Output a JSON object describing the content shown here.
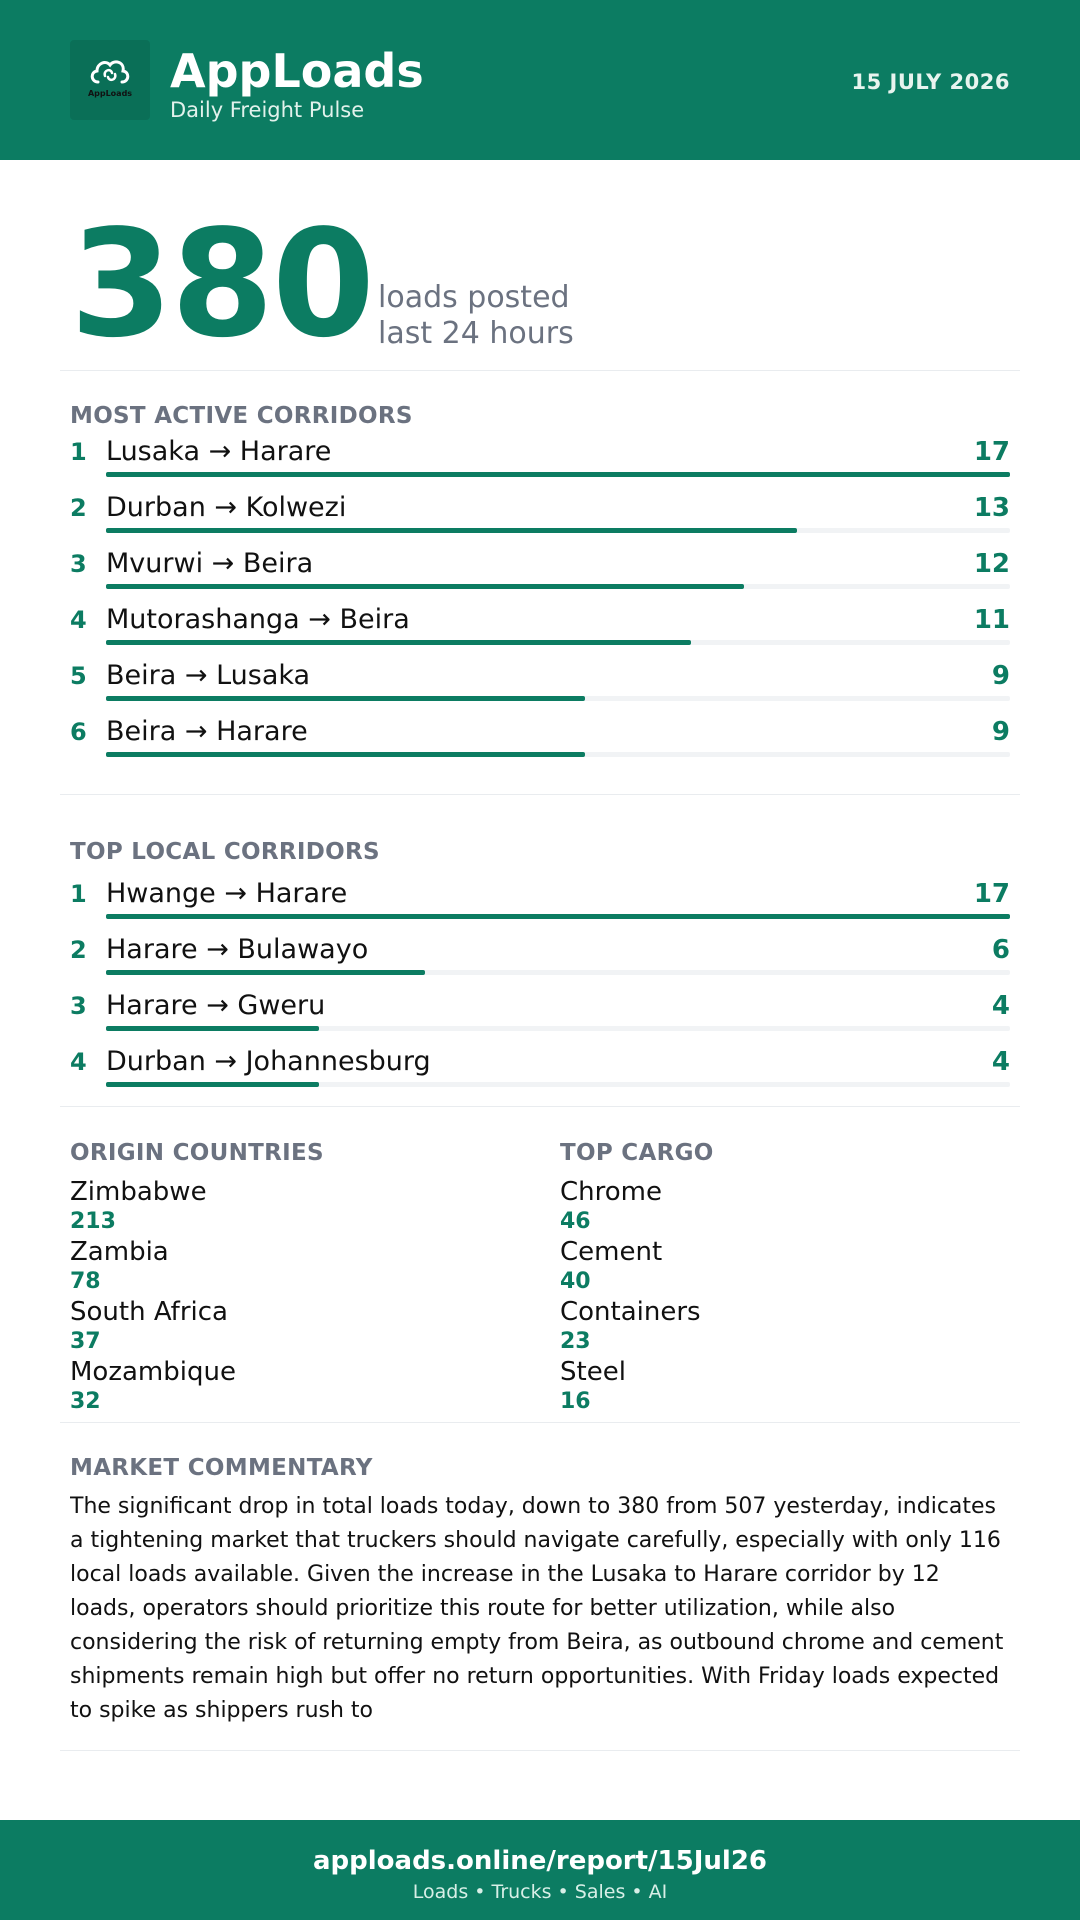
{
  "header": {
    "logo_icon": "cloud-link-icon",
    "logo_text": "AppLoads",
    "title": "AppLoads",
    "subtitle": "Daily Freight Pulse",
    "date": "15 JULY 2026"
  },
  "hero": {
    "value": "380",
    "label_line1": "loads posted",
    "label_line2": "last 24 hours"
  },
  "most_active": {
    "title": "MOST ACTIVE CORRIDORS",
    "max": 17,
    "items": [
      {
        "rank": "1",
        "route": "Lusaka → Harare",
        "count": 17
      },
      {
        "rank": "2",
        "route": "Durban → Kolwezi",
        "count": 13
      },
      {
        "rank": "3",
        "route": "Mvurwi → Beira",
        "count": 12
      },
      {
        "rank": "4",
        "route": "Mutorashanga → Beira",
        "count": 11
      },
      {
        "rank": "5",
        "route": "Beira → Lusaka",
        "count": 9
      },
      {
        "rank": "6",
        "route": "Beira → Harare",
        "count": 9
      }
    ]
  },
  "top_local": {
    "title": "TOP LOCAL CORRIDORS",
    "max": 17,
    "items": [
      {
        "rank": "1",
        "route": "Hwange → Harare",
        "count": 17
      },
      {
        "rank": "2",
        "route": "Harare → Bulawayo",
        "count": 6
      },
      {
        "rank": "3",
        "route": "Harare → Gweru",
        "count": 4
      },
      {
        "rank": "4",
        "route": "Durban → Johannesburg",
        "count": 4
      }
    ]
  },
  "origin_countries": {
    "title": "ORIGIN COUNTRIES",
    "items": [
      {
        "name": "Zimbabwe",
        "count": "213"
      },
      {
        "name": "Zambia",
        "count": "78"
      },
      {
        "name": "South Africa",
        "count": "37"
      },
      {
        "name": "Mozambique",
        "count": "32"
      }
    ]
  },
  "top_cargo": {
    "title": "TOP CARGO",
    "items": [
      {
        "name": "Chrome",
        "count": "46"
      },
      {
        "name": "Cement",
        "count": "40"
      },
      {
        "name": "Containers",
        "count": "23"
      },
      {
        "name": "Steel",
        "count": "16"
      }
    ]
  },
  "commentary": {
    "title": "MARKET COMMENTARY",
    "text": "The significant drop in total loads today, down to 380 from 507 yesterday, indicates a tightening market that truckers should navigate carefully, especially with only 116 local loads available. Given the increase in the Lusaka to Harare corridor by 12 loads, operators should prioritize this route for better utilization, while also considering the risk of returning empty from Beira, as outbound chrome and cement shipments remain high but offer no return opportunities. With Friday loads expected to spike as shippers rush to"
  },
  "footer": {
    "url": "apploads.online/report/15Jul26",
    "tagline": "Loads • Trucks • Sales • AI"
  },
  "colors": {
    "brand": "#0c7c62",
    "muted": "#6b7280",
    "track": "#f1f3f5"
  }
}
